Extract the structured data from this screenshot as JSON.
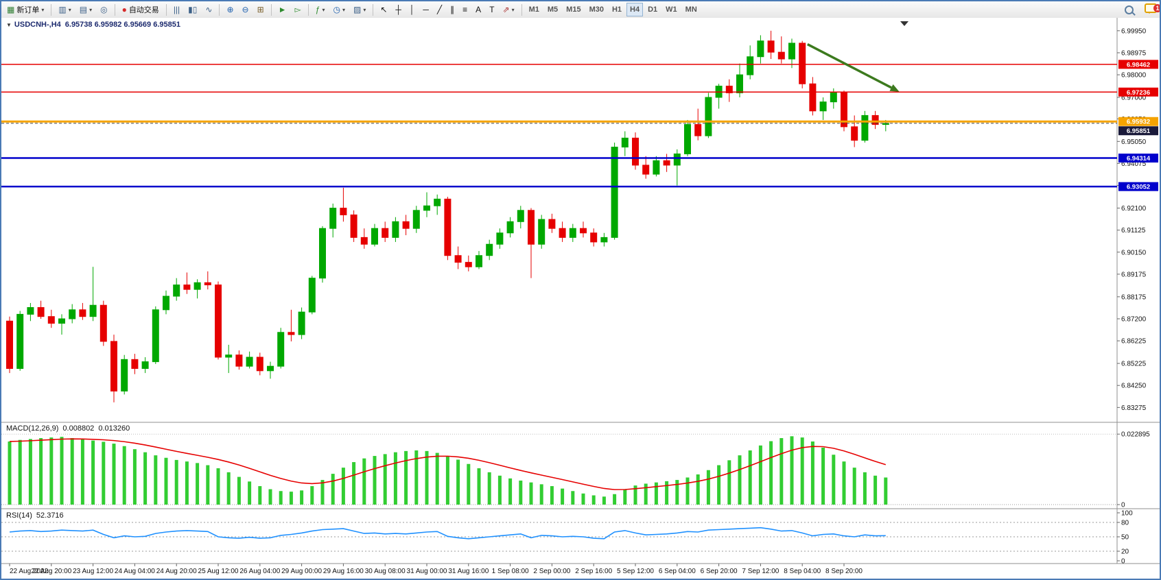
{
  "toolbar": {
    "badge_count": "1",
    "groups": [
      [
        {
          "name": "new-order",
          "icon": "▦",
          "icon_color": "#2e7d32",
          "label": "新订单",
          "caret": true
        }
      ],
      [
        {
          "name": "new-chart",
          "icon": "▥",
          "caret": true
        },
        {
          "name": "profiles",
          "icon": "▤",
          "caret": true
        },
        {
          "name": "mql-community",
          "icon": "◎"
        }
      ],
      [
        {
          "name": "auto-trading",
          "icon": "●",
          "icon_color": "#d62b2b",
          "label": "自动交易"
        }
      ],
      [
        {
          "name": "ohlc-bars",
          "icon": "|||"
        },
        {
          "name": "candlesticks",
          "icon": "▮▯"
        },
        {
          "name": "line-chart",
          "icon": "∿"
        }
      ],
      [
        {
          "name": "zoom-in",
          "icon": "⊕",
          "icon_color": "#1d5fae"
        },
        {
          "name": "zoom-out",
          "icon": "⊖",
          "icon_color": "#1d5fae"
        },
        {
          "name": "tile-windows",
          "icon": "⊞",
          "icon_color": "#7a5f2a"
        }
      ],
      [
        {
          "name": "auto-scroll",
          "icon": "►",
          "icon_color": "#2e8b2e"
        },
        {
          "name": "chart-shift",
          "icon": "▻",
          "icon_color": "#2e8b2e"
        }
      ],
      [
        {
          "name": "indicators",
          "icon": "ƒ",
          "icon_color": "#2e8b2e",
          "caret": true
        },
        {
          "name": "periods",
          "icon": "◷",
          "icon_color": "#1d5fae",
          "caret": true
        },
        {
          "name": "templates",
          "icon": "▨",
          "caret": true
        }
      ],
      [
        {
          "name": "cursor",
          "icon": "↖",
          "icon_color": "#111"
        },
        {
          "name": "crosshair",
          "icon": "┼",
          "icon_color": "#111"
        },
        {
          "name": "vertical-line",
          "icon": "│",
          "icon_color": "#111"
        },
        {
          "name": "horizontal-line",
          "icon": "─",
          "icon_color": "#111"
        },
        {
          "name": "trendline",
          "icon": "╱",
          "icon_color": "#111"
        },
        {
          "name": "equidistant-channel",
          "icon": "∥",
          "icon_color": "#111"
        },
        {
          "name": "fibonacci",
          "icon": "≡",
          "icon_color": "#111"
        },
        {
          "name": "text",
          "icon": "A",
          "icon_color": "#111"
        },
        {
          "name": "text-label",
          "icon": "T",
          "icon_color": "#111"
        },
        {
          "name": "arrows-tool",
          "icon": "⇗",
          "icon_color": "#a33",
          "caret": true
        }
      ],
      [
        {
          "name": "tf-M1",
          "tf": true,
          "label": "M1"
        },
        {
          "name": "tf-M5",
          "tf": true,
          "label": "M5"
        },
        {
          "name": "tf-M15",
          "tf": true,
          "label": "M15"
        },
        {
          "name": "tf-M30",
          "tf": true,
          "label": "M30"
        },
        {
          "name": "tf-H1",
          "tf": true,
          "label": "H1"
        },
        {
          "name": "tf-H4",
          "tf": true,
          "label": "H4",
          "active": true
        },
        {
          "name": "tf-D1",
          "tf": true,
          "label": "D1"
        },
        {
          "name": "tf-W1",
          "tf": true,
          "label": "W1"
        },
        {
          "name": "tf-MN",
          "tf": true,
          "label": "MN"
        }
      ]
    ]
  },
  "chart": {
    "collapse_icon": "▼",
    "symbol": "USDCNH-,H4",
    "ohlc": "6.95738 6.95982 6.95669 6.95851"
  },
  "chart_data": {
    "type": "candlestick",
    "symbol": "USDCNH-",
    "timeframe": "H4",
    "open": "6.95738",
    "high": "6.95982",
    "low": "6.95669",
    "close": "6.95851",
    "y_range": {
      "min": 6.828,
      "max": 7.004
    },
    "y_axis_labels": [
      "6.99950",
      "6.98975",
      "6.98000",
      "6.97000",
      "6.96050",
      "6.95050",
      "6.94075",
      "6.93100",
      "6.92100",
      "6.91125",
      "6.90150",
      "6.89175",
      "6.88175",
      "6.87200",
      "6.86225",
      "6.85225",
      "6.84250",
      "6.83275"
    ],
    "x_labels": [
      "22 Aug 2022",
      "22 Aug 20:00",
      "23 Aug 12:00",
      "24 Aug 04:00",
      "24 Aug 20:00",
      "25 Aug 12:00",
      "26 Aug 04:00",
      "29 Aug 00:00",
      "29 Aug 16:00",
      "30 Aug 08:00",
      "31 Aug 00:00",
      "31 Aug 16:00",
      "1 Sep 08:00",
      "2 Sep 00:00",
      "2 Sep 16:00",
      "5 Sep 12:00",
      "6 Sep 04:00",
      "6 Sep 20:00",
      "7 Sep 12:00",
      "8 Sep 04:00",
      "8 Sep 20:00"
    ],
    "candles_per_label": 4,
    "colors": {
      "up": "#00a800",
      "down": "#e60000",
      "macd_bar": "#32cd32",
      "macd_signal": "#e60000",
      "rsi_line": "#1e90ff"
    },
    "candles": [
      [
        6.871,
        6.873,
        6.848,
        6.85
      ],
      [
        6.85,
        6.8755,
        6.849,
        6.874
      ],
      [
        6.874,
        6.879,
        6.871,
        6.877
      ],
      [
        6.877,
        6.88,
        6.872,
        6.873
      ],
      [
        6.873,
        6.876,
        6.868,
        6.87
      ],
      [
        6.87,
        6.874,
        6.865,
        6.872
      ],
      [
        6.872,
        6.8785,
        6.87,
        6.876
      ],
      [
        6.876,
        6.879,
        6.8715,
        6.873
      ],
      [
        6.873,
        6.895,
        6.871,
        6.878
      ],
      [
        6.878,
        6.88,
        6.86,
        6.862
      ],
      [
        6.862,
        6.865,
        6.835,
        6.84
      ],
      [
        6.84,
        6.856,
        6.8385,
        6.854
      ],
      [
        6.854,
        6.8565,
        6.8475,
        6.85
      ],
      [
        6.85,
        6.855,
        6.848,
        6.853
      ],
      [
        6.853,
        6.8775,
        6.852,
        6.876
      ],
      [
        6.876,
        6.8845,
        6.874,
        6.882
      ],
      [
        6.882,
        6.89,
        6.88,
        6.887
      ],
      [
        6.887,
        6.8925,
        6.883,
        6.885
      ],
      [
        6.885,
        6.8895,
        6.881,
        6.888
      ],
      [
        6.888,
        6.893,
        6.885,
        6.887
      ],
      [
        6.887,
        6.8885,
        6.854,
        6.855
      ],
      [
        6.855,
        6.8605,
        6.848,
        6.856
      ],
      [
        6.856,
        6.858,
        6.8495,
        6.851
      ],
      [
        6.851,
        6.8575,
        6.85,
        6.855
      ],
      [
        6.855,
        6.857,
        6.847,
        6.849
      ],
      [
        6.849,
        6.853,
        6.8455,
        6.851
      ],
      [
        6.851,
        6.868,
        6.85,
        6.866
      ],
      [
        6.866,
        6.876,
        6.862,
        6.865
      ],
      [
        6.865,
        6.877,
        6.863,
        6.875
      ],
      [
        6.875,
        6.891,
        6.874,
        6.89
      ],
      [
        6.89,
        6.913,
        6.888,
        6.912
      ],
      [
        6.912,
        6.923,
        6.908,
        6.921
      ],
      [
        6.921,
        6.93,
        6.915,
        6.918
      ],
      [
        6.918,
        6.92,
        6.906,
        6.908
      ],
      [
        6.908,
        6.912,
        6.903,
        6.905
      ],
      [
        6.905,
        6.914,
        6.904,
        6.912
      ],
      [
        6.912,
        6.915,
        6.906,
        6.908
      ],
      [
        6.908,
        6.917,
        6.906,
        6.915
      ],
      [
        6.915,
        6.918,
        6.909,
        6.912
      ],
      [
        6.912,
        6.922,
        6.91,
        6.92
      ],
      [
        6.92,
        6.928,
        6.917,
        6.922
      ],
      [
        6.922,
        6.927,
        6.918,
        6.925
      ],
      [
        6.925,
        6.926,
        6.898,
        6.9
      ],
      [
        6.9,
        6.904,
        6.894,
        6.897
      ],
      [
        6.897,
        6.9,
        6.893,
        6.895
      ],
      [
        6.895,
        6.902,
        6.894,
        6.9
      ],
      [
        6.9,
        6.907,
        6.898,
        6.905
      ],
      [
        6.905,
        6.912,
        6.903,
        6.91
      ],
      [
        6.91,
        6.917,
        6.908,
        6.915
      ],
      [
        6.915,
        6.922,
        6.912,
        6.92
      ],
      [
        6.92,
        6.921,
        6.89,
        6.905
      ],
      [
        6.905,
        6.918,
        6.903,
        6.916
      ],
      [
        6.916,
        6.9185,
        6.91,
        6.912
      ],
      [
        6.912,
        6.915,
        6.906,
        6.908
      ],
      [
        6.908,
        6.914,
        6.906,
        6.912
      ],
      [
        6.912,
        6.915,
        6.908,
        6.91
      ],
      [
        6.91,
        6.912,
        6.904,
        6.906
      ],
      [
        6.906,
        6.91,
        6.904,
        6.908
      ],
      [
        6.908,
        6.95,
        6.907,
        6.948
      ],
      [
        6.948,
        6.955,
        6.944,
        6.952
      ],
      [
        6.952,
        6.9545,
        6.938,
        6.94
      ],
      [
        6.94,
        6.944,
        6.934,
        6.936
      ],
      [
        6.936,
        6.944,
        6.935,
        6.942
      ],
      [
        6.942,
        6.945,
        6.937,
        6.94
      ],
      [
        6.94,
        6.947,
        6.931,
        6.945
      ],
      [
        6.945,
        6.96,
        6.944,
        6.958
      ],
      [
        6.958,
        6.965,
        6.951,
        6.953
      ],
      [
        6.953,
        6.972,
        6.952,
        6.97
      ],
      [
        6.97,
        6.976,
        6.965,
        6.975
      ],
      [
        6.975,
        6.978,
        6.968,
        6.972
      ],
      [
        6.972,
        6.985,
        6.97,
        6.98
      ],
      [
        6.98,
        6.993,
        6.978,
        6.988
      ],
      [
        6.988,
        6.9975,
        6.985,
        6.995
      ],
      [
        6.995,
        6.9995,
        6.987,
        6.99
      ],
      [
        6.99,
        6.997,
        6.985,
        6.987
      ],
      [
        6.987,
        6.996,
        6.983,
        6.994
      ],
      [
        6.994,
        6.995,
        6.974,
        6.976
      ],
      [
        6.976,
        6.979,
        6.962,
        6.964
      ],
      [
        6.964,
        6.97,
        6.96,
        6.968
      ],
      [
        6.968,
        6.974,
        6.965,
        6.972
      ],
      [
        6.972,
        6.973,
        6.955,
        6.957
      ],
      [
        6.957,
        6.962,
        6.948,
        6.951
      ],
      [
        6.951,
        6.964,
        6.95,
        6.962
      ],
      [
        6.962,
        6.964,
        6.956,
        6.958
      ],
      [
        6.958,
        6.96,
        6.955,
        6.9585
      ]
    ],
    "hlines": [
      {
        "price": 6.98462,
        "label": "6.98462",
        "color": "#e60000",
        "badge_bg": "#e60000",
        "width": 1.5,
        "style": "solid"
      },
      {
        "price": 6.97236,
        "label": "6.97236",
        "color": "#e60000",
        "badge_bg": "#e60000",
        "width": 1.5,
        "style": "solid"
      },
      {
        "price": 6.95932,
        "label": "6.95932",
        "color": "#f5a300",
        "badge_bg": "#f5a300",
        "width": 3,
        "style": "solid"
      },
      {
        "price": 6.95851,
        "label": "6.95851",
        "color": "#444444",
        "badge_bg": "#1a1a3a",
        "width": 1,
        "style": "dash"
      },
      {
        "price": 6.94314,
        "label": "6.94314",
        "color": "#0000cc",
        "badge_bg": "#0000cc",
        "width": 2.5,
        "style": "solid"
      },
      {
        "price": 6.93052,
        "label": "6.93052",
        "color": "#0000cc",
        "badge_bg": "#0000cc",
        "width": 2.5,
        "style": "solid"
      }
    ],
    "trend_arrow": {
      "from_bar": 76.5,
      "from_price": 6.9935,
      "to_bar": 85.3,
      "to_price": 6.9725,
      "color": "#3c7a1e"
    },
    "indicators": [
      {
        "name": "MACD",
        "title": "MACD(12,26,9)",
        "values_text": [
          "0.008802",
          "0.013260"
        ],
        "axis_labels": [
          "0.022895",
          "0"
        ],
        "axis_values": [
          0.022895,
          0
        ],
        "max": 0.0245,
        "histogram": [
          0.0205,
          0.021,
          0.0213,
          0.0216,
          0.0218,
          0.022,
          0.0216,
          0.0212,
          0.0208,
          0.0204,
          0.0198,
          0.019,
          0.018,
          0.017,
          0.016,
          0.0152,
          0.0145,
          0.014,
          0.0135,
          0.0128,
          0.0118,
          0.0105,
          0.009,
          0.0075,
          0.006,
          0.005,
          0.0044,
          0.0042,
          0.0046,
          0.006,
          0.008,
          0.01,
          0.012,
          0.0138,
          0.015,
          0.0158,
          0.0164,
          0.017,
          0.0174,
          0.0176,
          0.0174,
          0.0168,
          0.0158,
          0.0146,
          0.0132,
          0.0118,
          0.0105,
          0.0094,
          0.0085,
          0.0078,
          0.0072,
          0.0066,
          0.006,
          0.0052,
          0.0044,
          0.0036,
          0.003,
          0.0026,
          0.0034,
          0.005,
          0.0062,
          0.0068,
          0.0072,
          0.0076,
          0.008,
          0.0088,
          0.0098,
          0.0112,
          0.0128,
          0.0144,
          0.016,
          0.0176,
          0.0192,
          0.0206,
          0.0216,
          0.0222,
          0.0218,
          0.0205,
          0.0185,
          0.0162,
          0.014,
          0.012,
          0.0105,
          0.0094,
          0.0088
        ],
        "signal_period": 9
      },
      {
        "name": "RSI",
        "title": "RSI(14)",
        "value_text": "52.3716",
        "axis_labels": [
          "100",
          "80",
          "50",
          "20",
          "0"
        ],
        "axis_values": [
          100,
          80,
          50,
          20,
          0
        ],
        "levels": [
          80,
          50,
          20
        ],
        "values": [
          60,
          62,
          63,
          61,
          62,
          64,
          63,
          62,
          64,
          55,
          48,
          52,
          50,
          51,
          57,
          60,
          62,
          63,
          62,
          61,
          50,
          48,
          47,
          49,
          47,
          48,
          53,
          55,
          58,
          62,
          65,
          66,
          67,
          62,
          57,
          58,
          56,
          57,
          56,
          58,
          60,
          61,
          51,
          48,
          46,
          48,
          50,
          52,
          54,
          56,
          48,
          53,
          52,
          50,
          51,
          50,
          47,
          46,
          60,
          63,
          58,
          54,
          55,
          56,
          58,
          61,
          60,
          64,
          65,
          66,
          67,
          68,
          69,
          66,
          62,
          63,
          58,
          52,
          55,
          56,
          52,
          50,
          54,
          52,
          52.37
        ]
      }
    ]
  }
}
